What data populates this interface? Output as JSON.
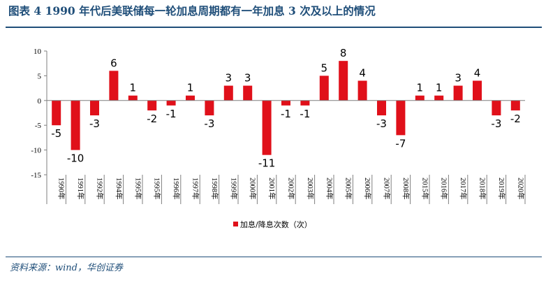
{
  "figure": {
    "title": "图表 4   1990 年代后美联储每一轮加息周期都有一年加息 3 次及以上的情况",
    "source": "资料来源：wind，华创证券"
  },
  "colors": {
    "bar": "#e0101a",
    "title": "#1f4e79",
    "axis": "#7f7f7f"
  },
  "chart_data": {
    "type": "bar",
    "title": "",
    "xlabel": "",
    "ylabel": "",
    "ylim": [
      -15,
      10
    ],
    "yticks": [
      "10",
      "5",
      "0",
      "-5",
      "-10",
      "-15"
    ],
    "ytick_values": [
      10,
      5,
      0,
      -5,
      -10,
      -15
    ],
    "grid": false,
    "legend_position": "bottom-center",
    "categories": [
      "1990年",
      "1991年",
      "1992年",
      "1994年",
      "1995年",
      "1995年",
      "1996年",
      "1997年",
      "1998年",
      "1999年",
      "2000年",
      "2001年",
      "2002年",
      "2003年",
      "2004年",
      "2005年",
      "2006年",
      "2007年",
      "2008年",
      "2015年",
      "2016年",
      "2017年",
      "2018年",
      "2019年",
      "2020年"
    ],
    "series": [
      {
        "name": "加息/降息次数（次）",
        "values": [
          -5,
          -10,
          -3,
          6,
          1,
          -2,
          -1,
          1,
          -3,
          3,
          3,
          -11,
          -1,
          -1,
          5,
          8,
          4,
          -3,
          -7,
          1,
          1,
          3,
          4,
          -3,
          -2
        ],
        "labels": [
          "-5",
          "-10",
          "-3",
          "6",
          "1",
          "-2",
          "-1",
          "1",
          "-3",
          "3",
          "3",
          "-11",
          "-1",
          "-1",
          "5",
          "8",
          "4",
          "-3",
          "-7",
          "1",
          "1",
          "3",
          "4",
          "-3",
          "-2"
        ]
      }
    ]
  }
}
